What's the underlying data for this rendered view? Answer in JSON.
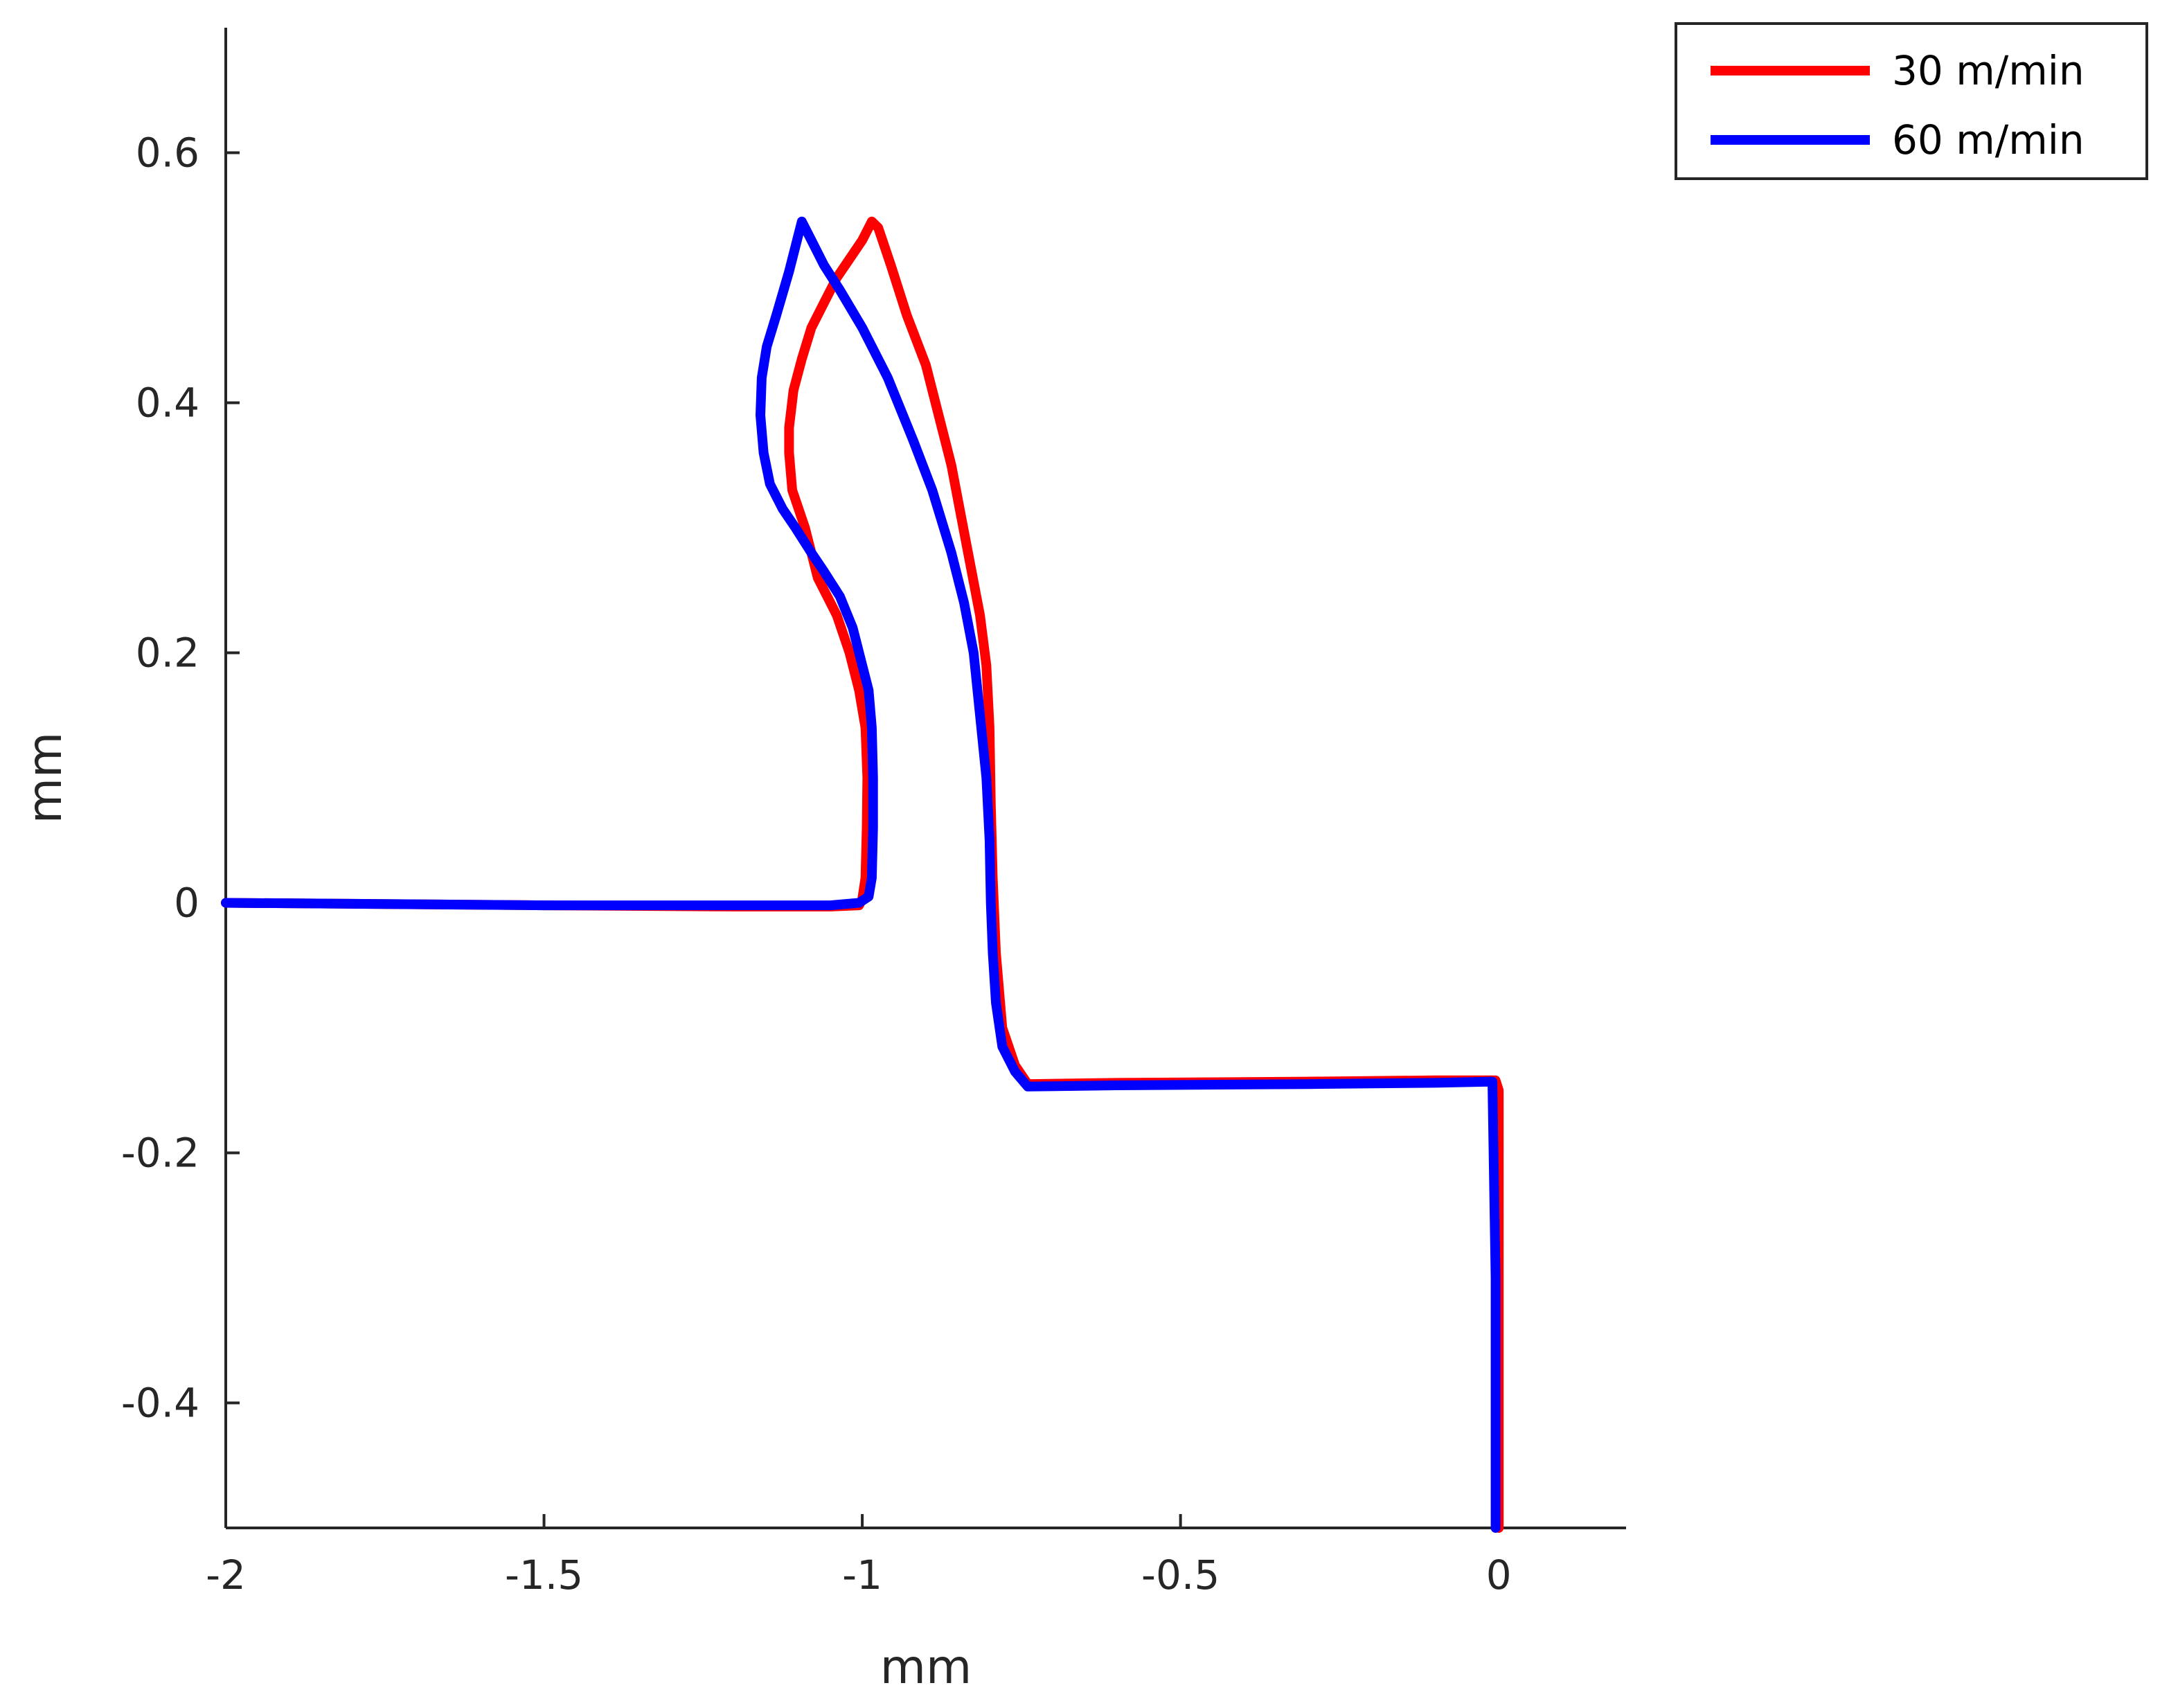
{
  "chart_data": {
    "type": "line",
    "title": "",
    "xlabel": "mm",
    "ylabel": "mm",
    "xlim": [
      -2,
      0.2
    ],
    "ylim": [
      -0.5,
      0.7
    ],
    "xticks": [
      -2,
      -1.5,
      -1,
      -0.5,
      0
    ],
    "xtick_labels": [
      "-2",
      "-1.5",
      "-1",
      "-0.5",
      "0"
    ],
    "yticks": [
      -0.4,
      -0.2,
      0,
      0.2,
      0.4,
      0.6
    ],
    "ytick_labels": [
      "-0.4",
      "-0.2",
      "0",
      "0.2",
      "0.4",
      "0.6"
    ],
    "grid": false,
    "legend_position": "top-right, outside",
    "series": [
      {
        "name": "30 m/min",
        "color": "#ff0000",
        "x": [
          -2.0,
          -1.5,
          -1.2,
          -1.05,
          -1.005,
          -1.0,
          -0.995,
          -0.993,
          -0.992,
          -0.995,
          -1.005,
          -1.02,
          -1.04,
          -1.07,
          -1.09,
          -1.11,
          -1.115,
          -1.115,
          -1.108,
          -1.095,
          -1.08,
          -1.06,
          -1.04,
          -1.0,
          -0.985,
          -0.975,
          -0.955,
          -0.93,
          -0.9,
          -0.875,
          -0.86,
          -0.845,
          -0.83,
          -0.815,
          -0.805,
          -0.8,
          -0.798,
          -0.795,
          -0.79,
          -0.78,
          -0.76,
          -0.74,
          -0.6,
          -0.3,
          -0.1,
          -0.005,
          0.0,
          0.0
        ],
        "y": [
          0.0,
          -0.002,
          -0.003,
          -0.003,
          -0.002,
          0.003,
          0.02,
          0.06,
          0.1,
          0.14,
          0.17,
          0.2,
          0.23,
          0.26,
          0.3,
          0.33,
          0.36,
          0.38,
          0.41,
          0.435,
          0.46,
          0.48,
          0.5,
          0.53,
          0.545,
          0.54,
          0.51,
          0.47,
          0.43,
          0.38,
          0.35,
          0.31,
          0.27,
          0.23,
          0.19,
          0.14,
          0.08,
          0.02,
          -0.04,
          -0.1,
          -0.13,
          -0.145,
          -0.144,
          -0.143,
          -0.142,
          -0.142,
          -0.15,
          -0.5
        ]
      },
      {
        "name": "60 m/min",
        "color": "#0000ff",
        "x": [
          -2.0,
          -1.5,
          -1.2,
          -1.05,
          -1.005,
          -0.99,
          -0.985,
          -0.983,
          -0.983,
          -0.985,
          -0.99,
          -1.0,
          -1.015,
          -1.035,
          -1.06,
          -1.08,
          -1.105,
          -1.125,
          -1.145,
          -1.155,
          -1.16,
          -1.158,
          -1.15,
          -1.135,
          -1.115,
          -1.1,
          -1.095,
          -1.08,
          -1.06,
          -1.035,
          -1.0,
          -0.96,
          -0.92,
          -0.89,
          -0.86,
          -0.84,
          -0.825,
          -0.815,
          -0.805,
          -0.8,
          -0.798,
          -0.795,
          -0.79,
          -0.78,
          -0.76,
          -0.74,
          -0.6,
          -0.3,
          -0.1,
          -0.01,
          -0.005,
          -0.005
        ],
        "y": [
          0.0,
          -0.002,
          -0.002,
          -0.002,
          0.0,
          0.005,
          0.02,
          0.06,
          0.1,
          0.14,
          0.17,
          0.19,
          0.22,
          0.245,
          0.265,
          0.28,
          0.3,
          0.315,
          0.335,
          0.36,
          0.39,
          0.42,
          0.445,
          0.47,
          0.505,
          0.535,
          0.545,
          0.53,
          0.51,
          0.49,
          0.46,
          0.42,
          0.37,
          0.33,
          0.28,
          0.24,
          0.2,
          0.15,
          0.1,
          0.05,
          0.0,
          -0.04,
          -0.08,
          -0.115,
          -0.135,
          -0.147,
          -0.146,
          -0.145,
          -0.144,
          -0.143,
          -0.3,
          -0.5
        ]
      }
    ]
  }
}
